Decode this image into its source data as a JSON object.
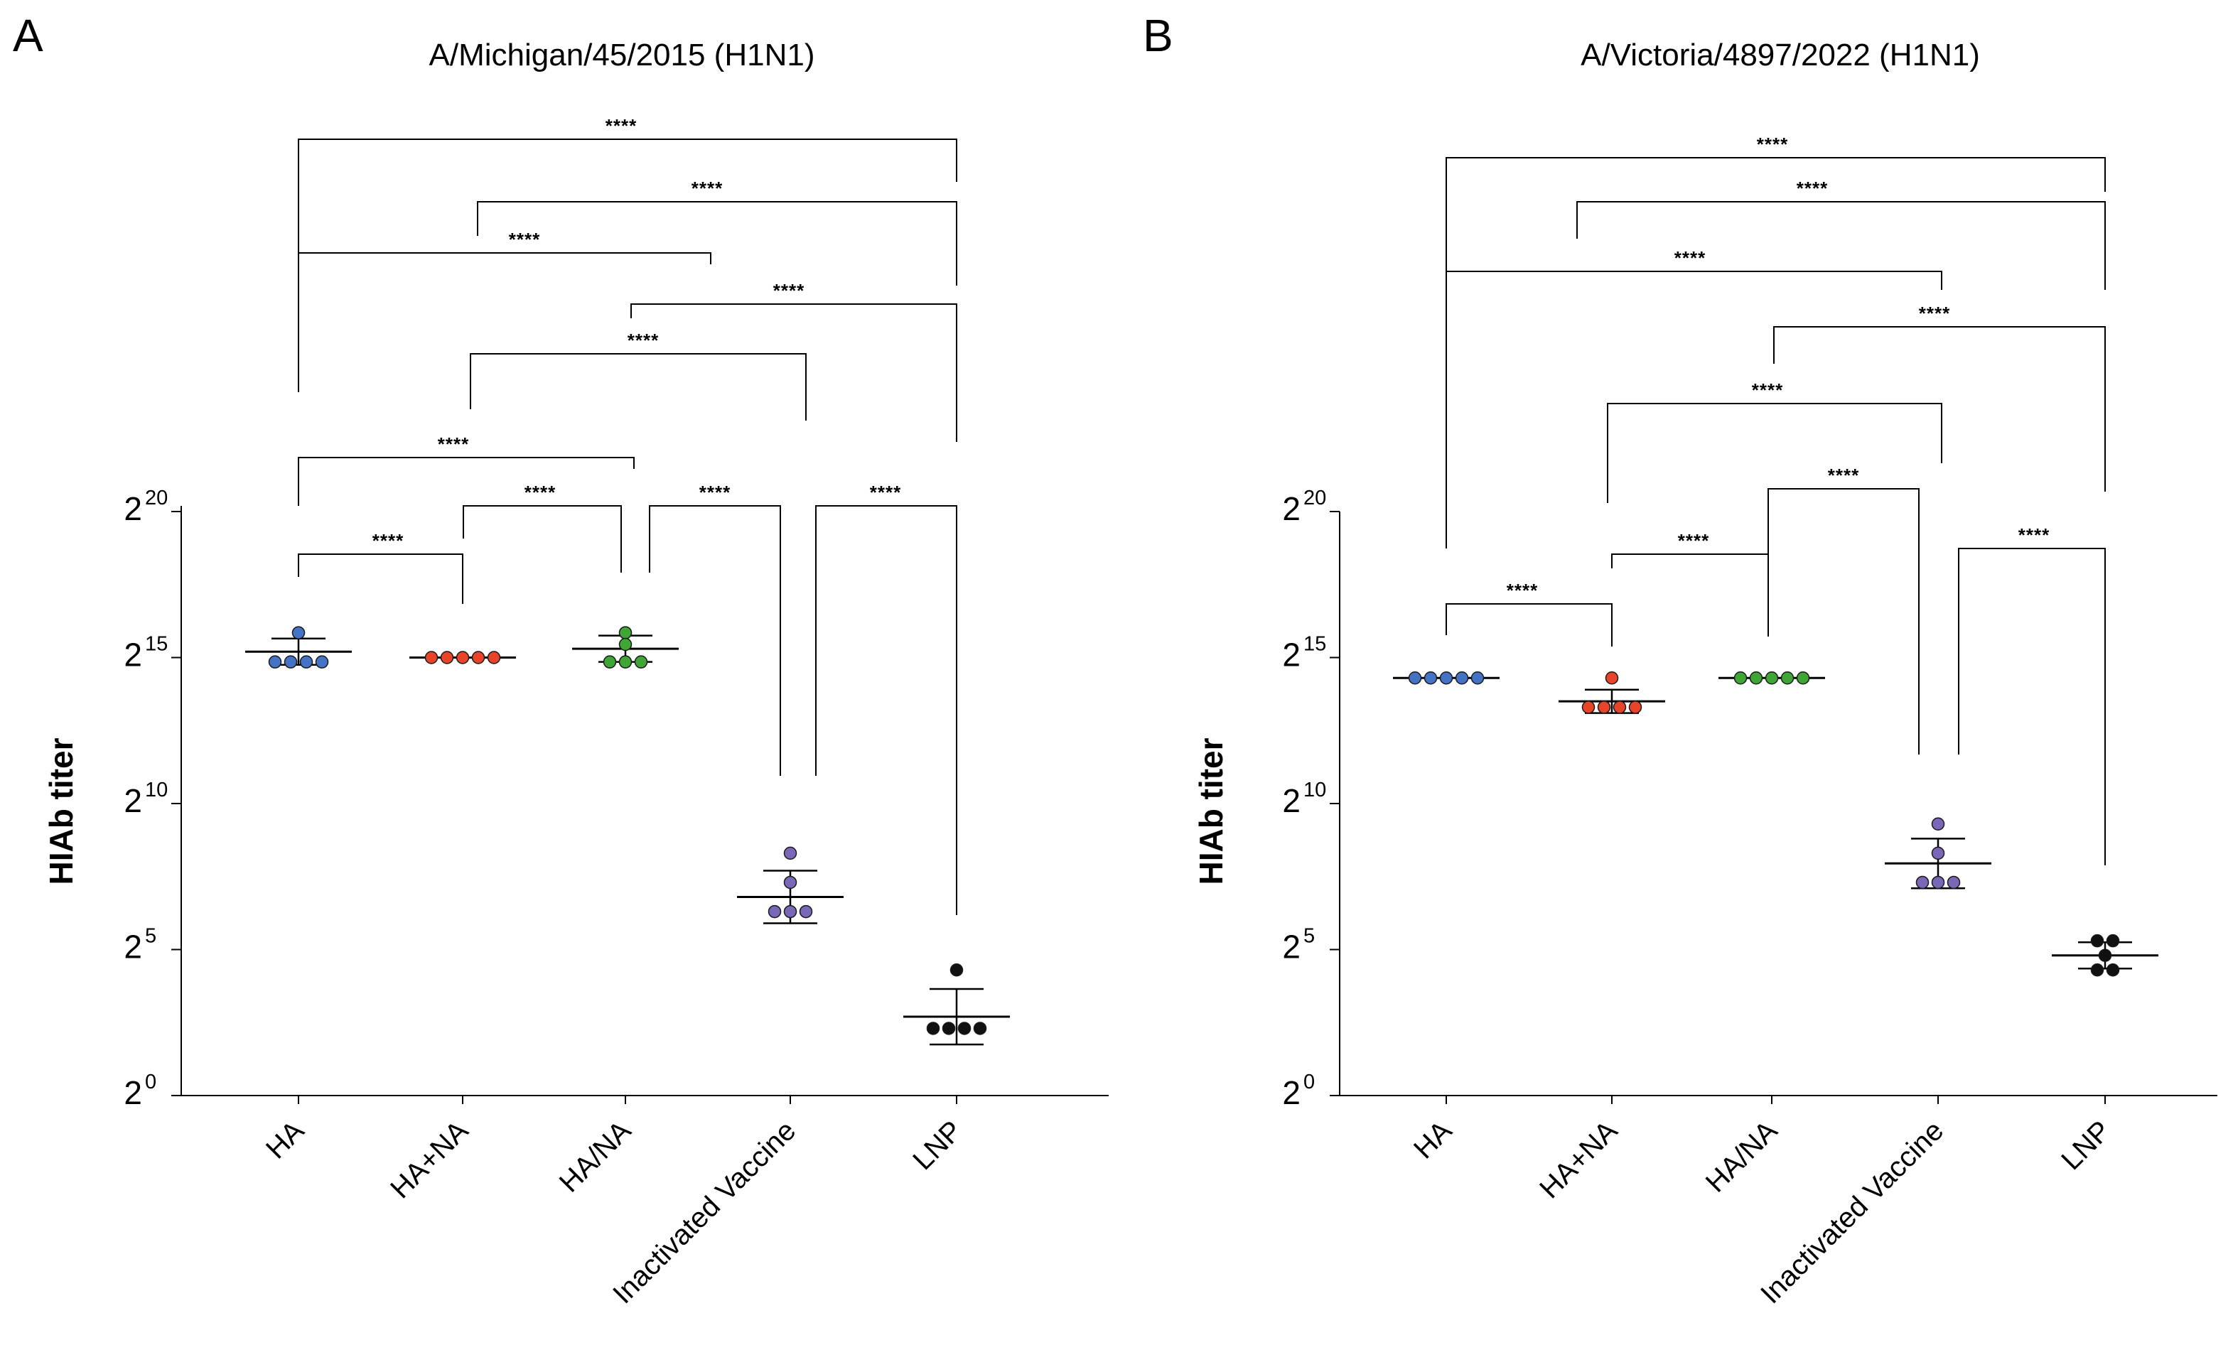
{
  "chart_data": [
    {
      "type": "scatter",
      "panel": "A",
      "title": "A/Michigan/45/2015 (H1N1)",
      "ylabel": "HIAb titer",
      "xlabel": "",
      "yscale": "log2",
      "ylim": [
        0,
        20
      ],
      "yticks": [
        {
          "base": "2",
          "exp": "0",
          "value": 0
        },
        {
          "base": "2",
          "exp": "5",
          "value": 5
        },
        {
          "base": "2",
          "exp": "10",
          "value": 10
        },
        {
          "base": "2",
          "exp": "15",
          "value": 15
        },
        {
          "base": "2",
          "exp": "20",
          "value": 20
        }
      ],
      "categories": [
        "HA",
        "HA+NA",
        "HA/NA",
        "Inactivated Vaccine",
        "LNP"
      ],
      "series": [
        {
          "name": "HA",
          "color": "#4472c4",
          "mean": 15.2,
          "sd": 0.45,
          "points": [
            15.85,
            14.85,
            14.85,
            14.85,
            14.85
          ]
        },
        {
          "name": "HA+NA",
          "color": "#e8442a",
          "mean": 15.0,
          "sd": 0,
          "points": [
            15.0,
            15.0,
            15.0,
            15.0,
            15.0
          ]
        },
        {
          "name": "HA/NA",
          "color": "#3fa535",
          "mean": 15.3,
          "sd": 0.45,
          "points": [
            15.85,
            15.45,
            14.85,
            14.85,
            14.85
          ]
        },
        {
          "name": "Inactivated Vaccine",
          "color": "#7b67b8",
          "mean": 6.8,
          "sd": 0.9,
          "points": [
            8.3,
            7.3,
            6.3,
            6.3,
            6.3
          ]
        },
        {
          "name": "LNP",
          "color": "#111111",
          "mean": 2.7,
          "sd": 0.95,
          "points": [
            4.3,
            2.3,
            2.3,
            2.3,
            2.3
          ]
        }
      ],
      "significance": [
        {
          "from": "HA",
          "to": "LNP",
          "label": "****"
        },
        {
          "from": "HA+NA",
          "to": "LNP",
          "label": "****"
        },
        {
          "from": "HA",
          "to": "Inactivated Vaccine",
          "label": "****"
        },
        {
          "from": "HA/NA",
          "to": "LNP",
          "label": "****"
        },
        {
          "from": "HA+NA",
          "to": "Inactivated Vaccine",
          "label": "****"
        },
        {
          "from": "HA",
          "to": "HA/NA",
          "label": "****"
        },
        {
          "from": "HA+NA",
          "to": "HA/NA",
          "label": "****"
        },
        {
          "from": "HA/NA",
          "to": "Inactivated Vaccine",
          "label": "****"
        },
        {
          "from": "Inactivated Vaccine",
          "to": "LNP",
          "label": "****"
        },
        {
          "from": "HA",
          "to": "HA+NA",
          "label": "****"
        }
      ]
    },
    {
      "type": "scatter",
      "panel": "B",
      "title": "A/Victoria/4897/2022 (H1N1)",
      "ylabel": "HIAb titer",
      "xlabel": "",
      "yscale": "log2",
      "ylim": [
        0,
        20
      ],
      "yticks": [
        {
          "base": "2",
          "exp": "0",
          "value": 0
        },
        {
          "base": "2",
          "exp": "5",
          "value": 5
        },
        {
          "base": "2",
          "exp": "10",
          "value": 10
        },
        {
          "base": "2",
          "exp": "15",
          "value": 15
        },
        {
          "base": "2",
          "exp": "20",
          "value": 20
        }
      ],
      "categories": [
        "HA",
        "HA+NA",
        "HA/NA",
        "Inactivated Vaccine",
        "LNP"
      ],
      "series": [
        {
          "name": "HA",
          "color": "#4472c4",
          "mean": 14.3,
          "sd": 0,
          "points": [
            14.3,
            14.3,
            14.3,
            14.3,
            14.3
          ]
        },
        {
          "name": "HA+NA",
          "color": "#e8442a",
          "mean": 13.5,
          "sd": 0.4,
          "points": [
            14.3,
            13.3,
            13.3,
            13.3,
            13.3
          ]
        },
        {
          "name": "HA/NA",
          "color": "#3fa535",
          "mean": 14.3,
          "sd": 0,
          "points": [
            14.3,
            14.3,
            14.3,
            14.3,
            14.3
          ]
        },
        {
          "name": "Inactivated Vaccine",
          "color": "#7b67b8",
          "mean": 7.95,
          "sd": 0.85,
          "points": [
            9.3,
            8.3,
            7.3,
            7.3,
            7.3
          ]
        },
        {
          "name": "LNP",
          "color": "#111111",
          "mean": 4.8,
          "sd": 0.45,
          "points": [
            5.3,
            5.3,
            4.8,
            4.3,
            4.3
          ]
        }
      ],
      "significance": [
        {
          "from": "HA",
          "to": "LNP",
          "label": "****"
        },
        {
          "from": "HA+NA",
          "to": "LNP",
          "label": "****"
        },
        {
          "from": "HA",
          "to": "Inactivated Vaccine",
          "label": "****"
        },
        {
          "from": "HA/NA",
          "to": "LNP",
          "label": "****"
        },
        {
          "from": "HA+NA",
          "to": "Inactivated Vaccine",
          "label": "****"
        },
        {
          "from": "HA/NA",
          "to": "Inactivated Vaccine",
          "label": "****"
        },
        {
          "from": "HA+NA",
          "to": "HA/NA",
          "label": "****"
        },
        {
          "from": "HA",
          "to": "HA+NA",
          "label": "****"
        },
        {
          "from": "Inactivated Vaccine",
          "to": "LNP",
          "label": "****"
        }
      ]
    }
  ]
}
